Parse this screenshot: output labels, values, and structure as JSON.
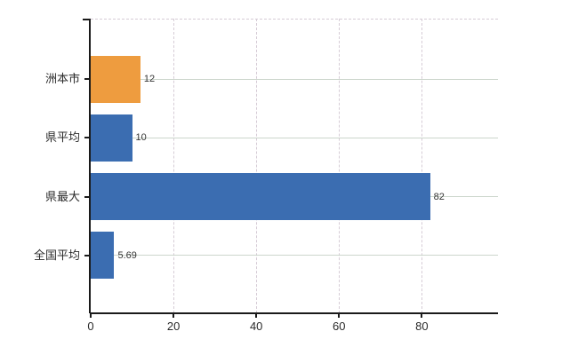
{
  "chart_data": {
    "type": "bar",
    "orientation": "horizontal",
    "title": "",
    "xlabel": "",
    "ylabel": "",
    "categories": [
      "洲本市",
      "県平均",
      "県最大",
      "全国平均"
    ],
    "values": [
      12,
      10,
      82,
      5.69
    ],
    "data_labels": [
      "12",
      "10",
      "82",
      "5.69"
    ],
    "bar_colors": [
      "#EE9C3F",
      "#3B6DB1",
      "#3B6DB1",
      "#3B6DB1"
    ],
    "x_ticks": [
      0,
      20,
      40,
      60,
      80
    ],
    "x_tick_labels": [
      "0",
      "20",
      "40",
      "60",
      "80"
    ],
    "xlim": [
      0,
      98.4
    ],
    "grid": true,
    "legend": false
  },
  "style": {
    "background": "#ffffff",
    "axis_color": "#1a1a1a",
    "grid_horizontal_color": "#ccd6cc",
    "grid_vertical_color": "#d6ccd6",
    "top_border_color": "#d6ccd6",
    "category_label_color": "#2b2b2b",
    "value_label_color": "#333333",
    "tick_label_color": "#2b2b2b"
  }
}
